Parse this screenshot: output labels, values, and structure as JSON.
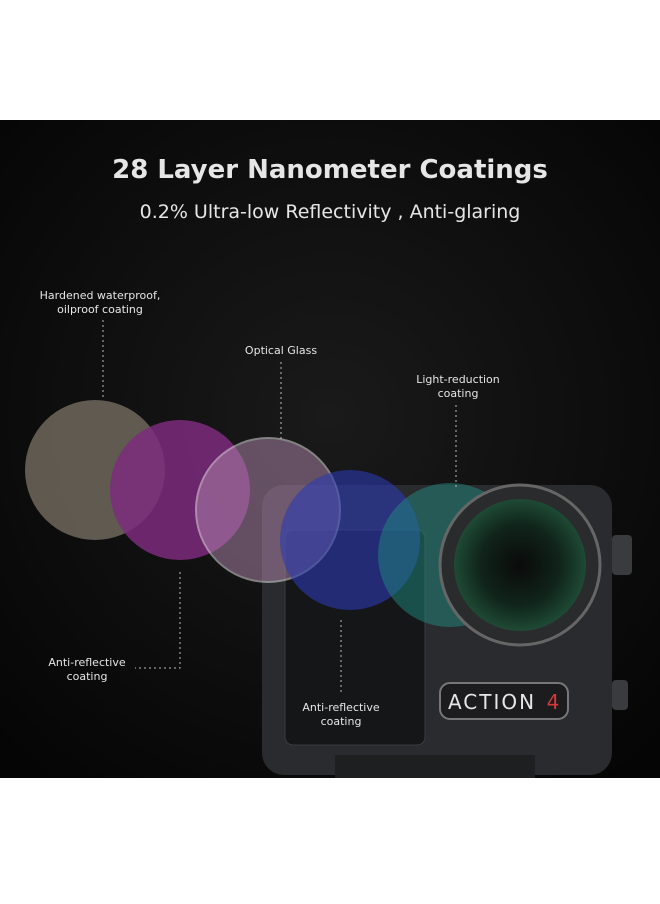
{
  "header": {
    "title": "28 Layer Nanometer Coatings",
    "subtitle": "0.2% Ultra-low Reflectivity , Anti-glaring"
  },
  "labels": [
    {
      "lines": [
        "Hardened waterproof,",
        "oilproof coating"
      ]
    },
    {
      "lines": [
        "Optical Glass"
      ]
    },
    {
      "lines": [
        "Light-reduction",
        "coating"
      ]
    },
    {
      "lines": [
        "Anti-reflective",
        "coating"
      ]
    },
    {
      "lines": [
        "Anti-reflective",
        "coating"
      ]
    }
  ],
  "camera": {
    "brand": "ACTION",
    "model": "4"
  }
}
